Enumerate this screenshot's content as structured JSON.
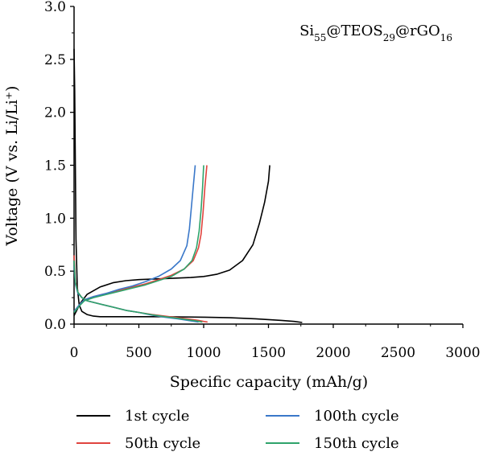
{
  "chart_data": {
    "type": "line",
    "title": "",
    "xlabel": "Specific capacity (mAh/g)",
    "ylabel": "Voltage (V vs. Li/Li⁺)",
    "xlim": [
      0,
      3000
    ],
    "ylim": [
      0,
      3.0
    ],
    "x_ticks": [
      "0",
      "500",
      "1000",
      "1500",
      "2000",
      "2500",
      "3000"
    ],
    "y_ticks": [
      "0.0",
      "0.5",
      "1.0",
      "1.5",
      "2.0",
      "2.5",
      "3.0"
    ],
    "grid": false,
    "legend_placement": "bottom",
    "annotation": {
      "base": "Si",
      "sub1": "55",
      "mid1": "@TEOS",
      "sub2": "29",
      "mid2": "@rGO",
      "sub3": "16"
    },
    "series": [
      {
        "name": "1st cycle",
        "color": "#000000",
        "discharge": [
          [
            0,
            2.6
          ],
          [
            5,
            2.2
          ],
          [
            10,
            1.5
          ],
          [
            15,
            0.8
          ],
          [
            25,
            0.35
          ],
          [
            40,
            0.18
          ],
          [
            60,
            0.12
          ],
          [
            100,
            0.09
          ],
          [
            150,
            0.075
          ],
          [
            200,
            0.07
          ],
          [
            400,
            0.07
          ],
          [
            600,
            0.07
          ],
          [
            800,
            0.068
          ],
          [
            1000,
            0.065
          ],
          [
            1200,
            0.06
          ],
          [
            1400,
            0.05
          ],
          [
            1600,
            0.035
          ],
          [
            1700,
            0.025
          ],
          [
            1760,
            0.015
          ]
        ],
        "charge": [
          [
            0,
            0.08
          ],
          [
            50,
            0.2
          ],
          [
            100,
            0.28
          ],
          [
            200,
            0.35
          ],
          [
            300,
            0.39
          ],
          [
            400,
            0.41
          ],
          [
            500,
            0.42
          ],
          [
            700,
            0.43
          ],
          [
            900,
            0.44
          ],
          [
            1000,
            0.45
          ],
          [
            1100,
            0.47
          ],
          [
            1200,
            0.51
          ],
          [
            1300,
            0.6
          ],
          [
            1380,
            0.75
          ],
          [
            1430,
            0.95
          ],
          [
            1470,
            1.15
          ],
          [
            1500,
            1.35
          ],
          [
            1510,
            1.5
          ]
        ]
      },
      {
        "name": "50th cycle",
        "color": "#e0443e",
        "discharge": [
          [
            0,
            0.65
          ],
          [
            10,
            0.4
          ],
          [
            30,
            0.3
          ],
          [
            60,
            0.25
          ],
          [
            100,
            0.22
          ],
          [
            200,
            0.19
          ],
          [
            300,
            0.16
          ],
          [
            400,
            0.13
          ],
          [
            500,
            0.11
          ],
          [
            600,
            0.09
          ],
          [
            700,
            0.075
          ],
          [
            800,
            0.06
          ],
          [
            900,
            0.045
          ],
          [
            960,
            0.035
          ],
          [
            1000,
            0.025
          ],
          [
            1030,
            0.02
          ]
        ],
        "charge": [
          [
            0,
            0.12
          ],
          [
            40,
            0.18
          ],
          [
            80,
            0.23
          ],
          [
            150,
            0.26
          ],
          [
            250,
            0.29
          ],
          [
            350,
            0.32
          ],
          [
            450,
            0.35
          ],
          [
            550,
            0.38
          ],
          [
            650,
            0.42
          ],
          [
            750,
            0.46
          ],
          [
            850,
            0.52
          ],
          [
            920,
            0.6
          ],
          [
            960,
            0.72
          ],
          [
            980,
            0.85
          ],
          [
            995,
            1.05
          ],
          [
            1010,
            1.3
          ],
          [
            1025,
            1.5
          ]
        ]
      },
      {
        "name": "100th cycle",
        "color": "#3a78c9",
        "discharge": [
          [
            0,
            0.55
          ],
          [
            10,
            0.38
          ],
          [
            30,
            0.29
          ],
          [
            60,
            0.25
          ],
          [
            100,
            0.22
          ],
          [
            200,
            0.19
          ],
          [
            300,
            0.16
          ],
          [
            400,
            0.13
          ],
          [
            500,
            0.11
          ],
          [
            600,
            0.085
          ],
          [
            700,
            0.065
          ],
          [
            800,
            0.05
          ],
          [
            880,
            0.035
          ],
          [
            930,
            0.025
          ],
          [
            960,
            0.02
          ]
        ],
        "charge": [
          [
            0,
            0.12
          ],
          [
            40,
            0.18
          ],
          [
            80,
            0.23
          ],
          [
            150,
            0.26
          ],
          [
            250,
            0.29
          ],
          [
            350,
            0.33
          ],
          [
            450,
            0.36
          ],
          [
            550,
            0.4
          ],
          [
            650,
            0.45
          ],
          [
            750,
            0.52
          ],
          [
            820,
            0.6
          ],
          [
            870,
            0.74
          ],
          [
            890,
            0.9
          ],
          [
            905,
            1.1
          ],
          [
            920,
            1.3
          ],
          [
            935,
            1.5
          ]
        ]
      },
      {
        "name": "150th cycle",
        "color": "#2fa36b",
        "discharge": [
          [
            0,
            0.6
          ],
          [
            10,
            0.39
          ],
          [
            30,
            0.3
          ],
          [
            60,
            0.25
          ],
          [
            100,
            0.22
          ],
          [
            200,
            0.19
          ],
          [
            300,
            0.16
          ],
          [
            400,
            0.13
          ],
          [
            500,
            0.11
          ],
          [
            600,
            0.088
          ],
          [
            700,
            0.07
          ],
          [
            800,
            0.055
          ],
          [
            880,
            0.04
          ],
          [
            940,
            0.03
          ],
          [
            990,
            0.02
          ]
        ],
        "charge": [
          [
            0,
            0.11
          ],
          [
            40,
            0.17
          ],
          [
            80,
            0.22
          ],
          [
            150,
            0.25
          ],
          [
            250,
            0.28
          ],
          [
            350,
            0.31
          ],
          [
            450,
            0.34
          ],
          [
            550,
            0.37
          ],
          [
            650,
            0.41
          ],
          [
            750,
            0.45
          ],
          [
            850,
            0.52
          ],
          [
            910,
            0.6
          ],
          [
            945,
            0.72
          ],
          [
            965,
            0.88
          ],
          [
            980,
            1.08
          ],
          [
            992,
            1.3
          ],
          [
            1000,
            1.5
          ]
        ]
      }
    ]
  }
}
